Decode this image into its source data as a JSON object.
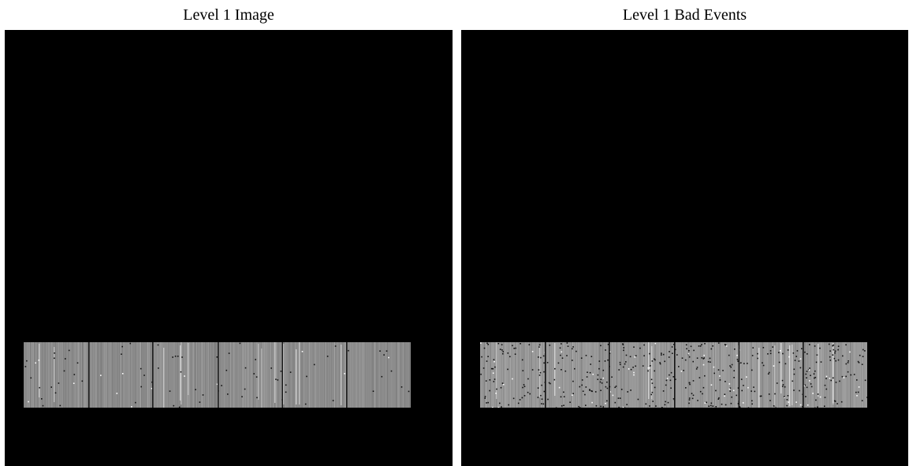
{
  "panels": [
    {
      "title": "Level 1 Image",
      "strip_colors": {
        "base": "#8c8c8c",
        "streak": "#d6d6d6",
        "gap": "#1a1a1a"
      },
      "gap_fractions": [
        0.167,
        0.332,
        0.501,
        0.667,
        0.833
      ],
      "noise": "fine"
    },
    {
      "title": "Level 1 Bad Events",
      "strip_colors": {
        "base": "#9a9a9a",
        "streak": "#e2e2e2",
        "gap": "#111111"
      },
      "gap_fractions": [
        0.167,
        0.332,
        0.501,
        0.667,
        0.833
      ],
      "noise": "speckled"
    }
  ]
}
